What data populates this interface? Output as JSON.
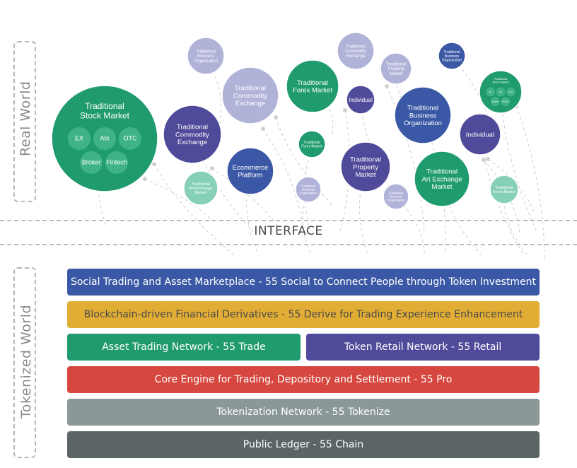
{
  "side_labels": {
    "real_world": "Real World",
    "tokenized_world": "Tokenized World"
  },
  "interface_label": "INTERFACE",
  "colors": {
    "green": "#1f9b6e",
    "purple": "#4f4a99",
    "blue": "#3a58a5",
    "light_purple": "#b0b2d8",
    "light_green": "#86d0b7",
    "connector": "#cccccc"
  },
  "circles": [
    {
      "id": "stock-market-large",
      "lines": [
        "Traditional",
        "Stock Market"
      ],
      "color": "green",
      "sub": [
        "EX",
        "Ats",
        "OTC",
        "Broker",
        "Fintech"
      ]
    },
    {
      "id": "business-org-top",
      "lines": [
        "Traditional",
        "Business",
        "Organization"
      ],
      "color": "light_purple"
    },
    {
      "id": "commodity-exchange-light",
      "lines": [
        "Traditional",
        "Commodity",
        "Exchange"
      ],
      "color": "light_purple"
    },
    {
      "id": "forex-market-large",
      "lines": [
        "Traditional",
        "Forex Market"
      ],
      "color": "green"
    },
    {
      "id": "commodity-exchange-top",
      "lines": [
        "Traditional",
        "Commodity",
        "Exchange"
      ],
      "color": "light_purple"
    },
    {
      "id": "property-market-small",
      "lines": [
        "Traditional",
        "Property",
        "Market"
      ],
      "color": "light_purple"
    },
    {
      "id": "business-org-small",
      "lines": [
        "Traditional",
        "Business",
        "Organization"
      ],
      "color": "blue"
    },
    {
      "id": "stock-market-small",
      "lines": [
        "Traditional",
        "Stock Market"
      ],
      "color": "green",
      "sub": [
        "EX",
        "Ats",
        "OTC",
        "Broker",
        "Fintech"
      ]
    },
    {
      "id": "individual-small",
      "lines": [
        "Individual"
      ],
      "color": "purple"
    },
    {
      "id": "business-org-medium",
      "lines": [
        "Traditional",
        "Business",
        "Organization"
      ],
      "color": "blue"
    },
    {
      "id": "commodity-exchange-dark",
      "lines": [
        "Traditional",
        "Commodity",
        "Exchange"
      ],
      "color": "purple"
    },
    {
      "id": "individual-medium",
      "lines": [
        "Individual"
      ],
      "color": "purple"
    },
    {
      "id": "forex-market-small",
      "lines": [
        "Traditional",
        "Forex Market"
      ],
      "color": "green"
    },
    {
      "id": "ecommerce-platform",
      "lines": [
        "Ecommerce",
        "Platform"
      ],
      "color": "blue"
    },
    {
      "id": "property-market-medium",
      "lines": [
        "Traditional",
        "Property",
        "Market"
      ],
      "color": "purple"
    },
    {
      "id": "art-exchange-medium",
      "lines": [
        "Traditional",
        "Art Exchange",
        "Market"
      ],
      "color": "green"
    },
    {
      "id": "art-exchange-light",
      "lines": [
        "Traditional",
        "Art Exchange",
        "Market"
      ],
      "color": "light_green"
    },
    {
      "id": "business-org-faint",
      "lines": [
        "Traditional",
        "Business",
        "Organization"
      ],
      "color": "light_purple"
    },
    {
      "id": "business-org-faint-2",
      "lines": [
        "Traditional",
        "Business",
        "Organization"
      ],
      "color": "light_purple"
    },
    {
      "id": "forex-market-light",
      "lines": [
        "Traditional",
        "Forex Market"
      ],
      "color": "light_green"
    }
  ],
  "layers": [
    {
      "id": "social-trading",
      "text": "Social Trading and Asset Marketplace - 55 Social to Connect People through Token Investment",
      "color": "#3a58a5",
      "text_color": "#ffffff"
    },
    {
      "id": "derivatives",
      "text": "Blockchain-driven Financial Derivatives - 55 Derive for Trading Experience Enhancement",
      "color": "#e2ad34",
      "text_color": "#4a4a4a"
    },
    {
      "id": "asset-trading",
      "text": "Asset Trading Network - 55 Trade",
      "color": "#1f9b6e",
      "text_color": "#ffffff"
    },
    {
      "id": "token-retail",
      "text": "Token Retail Network - 55 Retail",
      "color": "#4f4a99",
      "text_color": "#ffffff"
    },
    {
      "id": "core-engine",
      "text": "Core Engine for Trading, Depository and Settlement - 55 Pro",
      "color": "#d5473f",
      "text_color": "#ffffff"
    },
    {
      "id": "tokenization",
      "text": "Tokenization Network - 55 Tokenize",
      "color": "#8a9898",
      "text_color": "#ffffff"
    },
    {
      "id": "public-ledger",
      "text": "Public Ledger - 55 Chain",
      "color": "#5b6566",
      "text_color": "#ffffff"
    }
  ]
}
